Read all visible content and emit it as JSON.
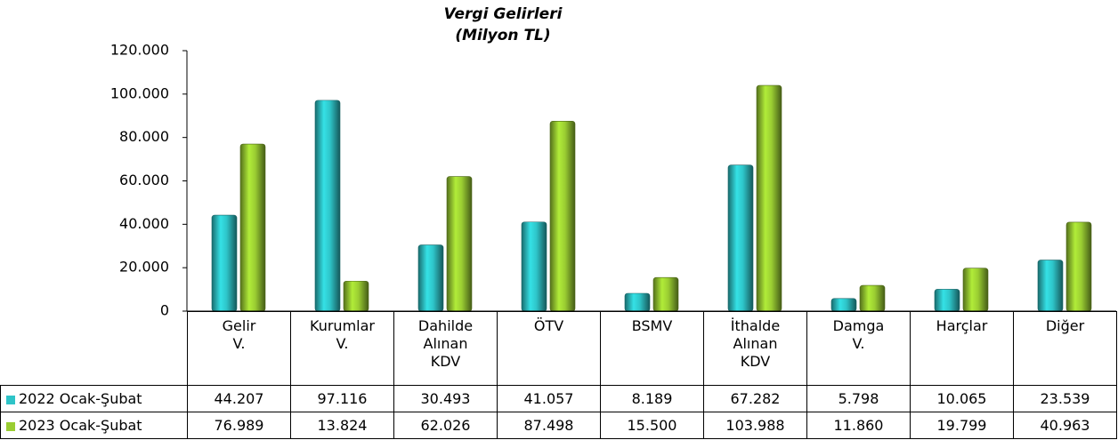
{
  "chart_data": {
    "type": "bar",
    "title": "Vergi Gelirleri",
    "subtitle": "(Milyon TL)",
    "categories": [
      "Gelir V.",
      "Kurumlar V.",
      "Dahilde Alınan KDV",
      "ÖTV",
      "BSMV",
      "İthalde Alınan KDV",
      "Damga V.",
      "Harçlar",
      "Diğer"
    ],
    "series": [
      {
        "name": "2022 Ocak-Şubat",
        "color": "#2ec4c8",
        "values": [
          44207,
          97116,
          30493,
          41057,
          8189,
          67282,
          5798,
          10065,
          23539
        ],
        "value_labels": [
          "44.207",
          "97.116",
          "30.493",
          "41.057",
          "8.189",
          "67.282",
          "5.798",
          "10.065",
          "23.539"
        ]
      },
      {
        "name": "2023 Ocak-Şubat",
        "color": "#9acd32",
        "values": [
          76989,
          13824,
          62026,
          87498,
          15500,
          103988,
          11860,
          19799,
          40963
        ],
        "value_labels": [
          "76.989",
          "13.824",
          "62.026",
          "87.498",
          "15.500",
          "103.988",
          "11.860",
          "19.799",
          "40.963"
        ]
      }
    ],
    "ylim": [
      0,
      120000
    ],
    "yticks": [
      0,
      {
        "value": 20000,
        "label": "20.000"
      },
      {
        "value": 40000,
        "label": "40.000"
      },
      {
        "value": 60000,
        "label": "60.000"
      },
      {
        "value": 80000,
        "label": "80.000"
      },
      {
        "value": 100000,
        "label": "100.000"
      },
      {
        "value": 120000,
        "label": "120.000"
      }
    ]
  }
}
